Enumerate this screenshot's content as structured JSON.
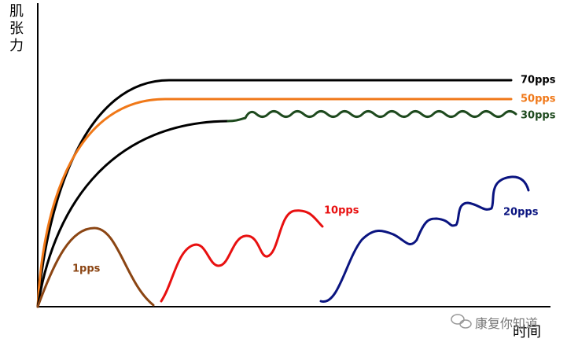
{
  "axes": {
    "y_label": "肌张力",
    "x_label": "时间"
  },
  "curves": [
    {
      "label": "70pps"
    },
    {
      "label": "50pps"
    },
    {
      "label": "30pps"
    },
    {
      "label": "10pps"
    },
    {
      "label": "20pps"
    },
    {
      "label": "1pps"
    }
  ],
  "watermark": "康复你知道"
}
